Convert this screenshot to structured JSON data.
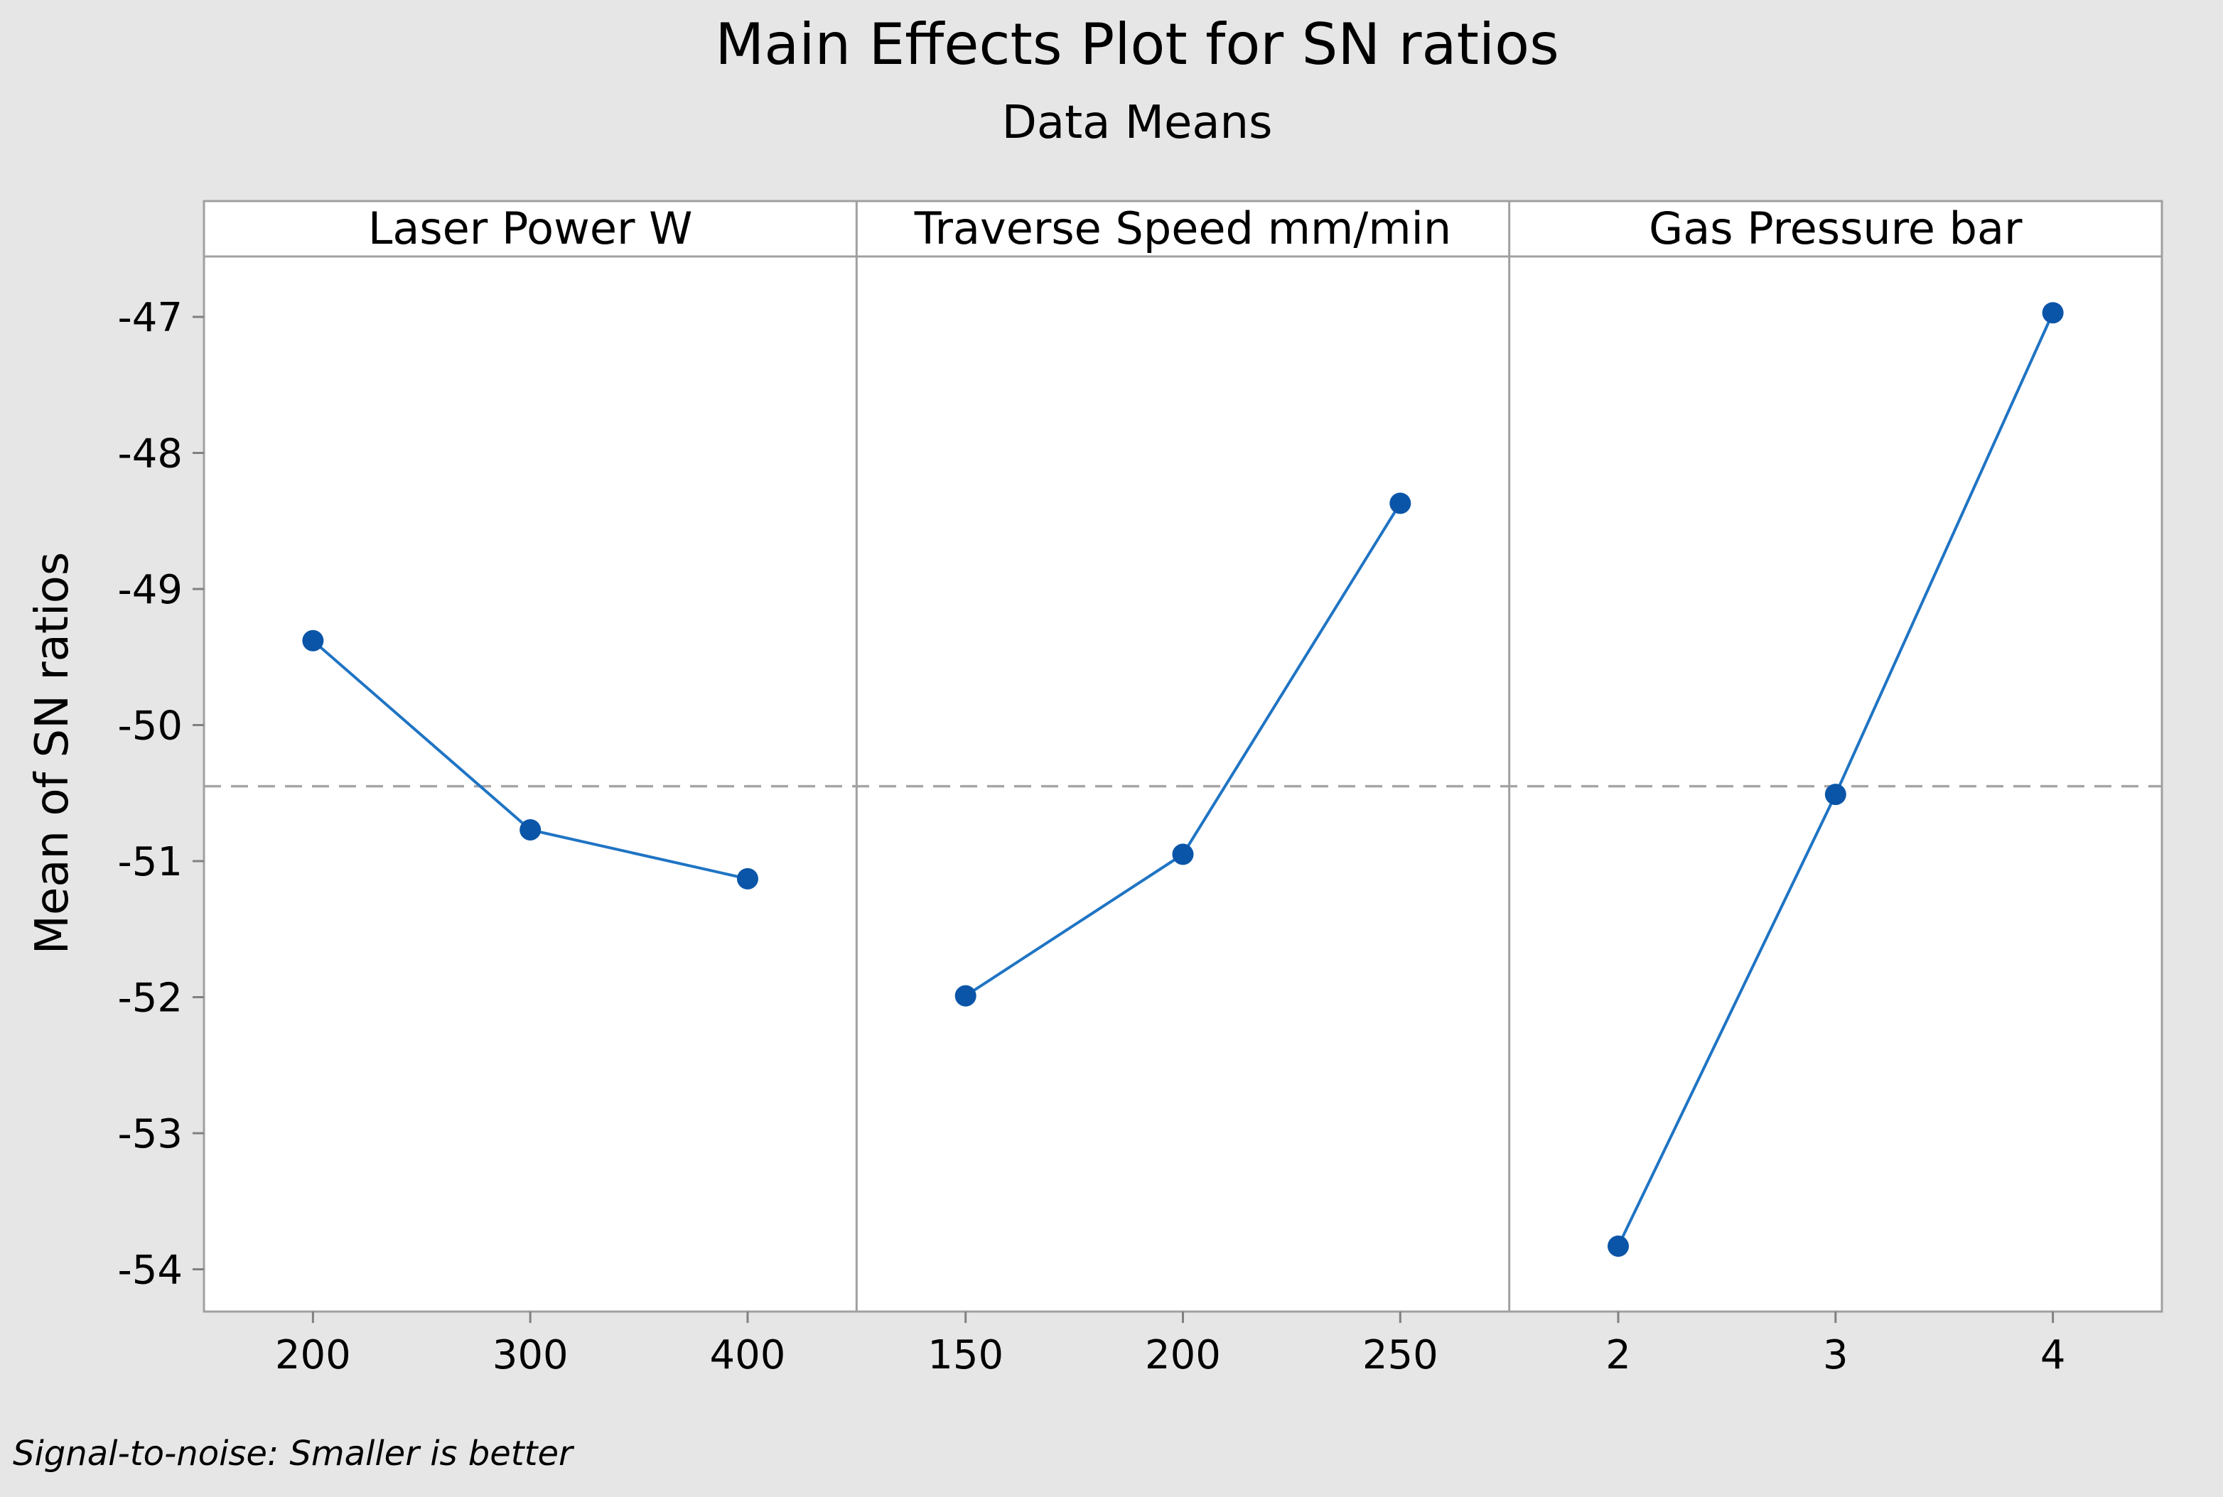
{
  "chart_data": {
    "type": "line",
    "title": "Main Effects Plot for SN ratios",
    "subtitle": "Data Means",
    "ylabel": "Mean of SN ratios",
    "ylim": [
      -54.3,
      -46.5
    ],
    "yticks": [
      -54,
      -53,
      -52,
      -51,
      -50,
      -49,
      -48,
      -47
    ],
    "grid": false,
    "reference_line": {
      "value": -50.45,
      "style": "dashed"
    },
    "series_color": "#1f74c4",
    "marker_color": "#0b55a8",
    "panels": [
      {
        "name": "Laser Power W",
        "categories": [
          "200",
          "300",
          "400"
        ],
        "values": [
          -49.38,
          -50.77,
          -51.13
        ]
      },
      {
        "name": "Traverse Speed mm/min",
        "categories": [
          "150",
          "200",
          "250"
        ],
        "values": [
          -51.99,
          -50.95,
          -48.37
        ]
      },
      {
        "name": "Gas Pressure bar",
        "categories": [
          "2",
          "3",
          "4"
        ],
        "values": [
          -53.83,
          -50.51,
          -46.97
        ]
      }
    ],
    "footnote": "Signal-to-noise: Smaller is better"
  }
}
